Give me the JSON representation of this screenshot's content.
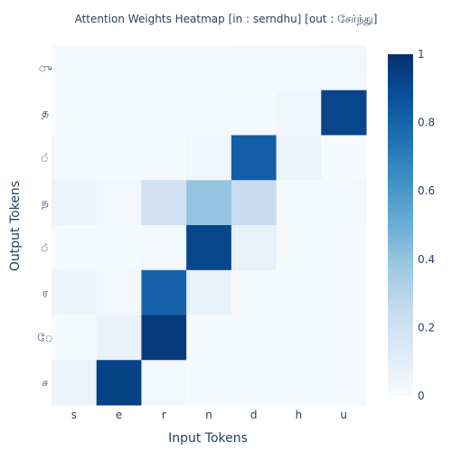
{
  "chart_data": {
    "type": "heatmap",
    "title": "Attention Weights Heatmap [in : serndhu] [out : சேர்ந்து]",
    "xlabel": "Input Tokens",
    "ylabel": "Output Tokens",
    "x_categories": [
      "s",
      "e",
      "r",
      "n",
      "d",
      "h",
      "u"
    ],
    "y_categories": [
      "ு",
      "த",
      "்",
      "ந",
      "்",
      "ர",
      "ே",
      "ச"
    ],
    "values": [
      [
        0.01,
        0.01,
        0.01,
        0.01,
        0.02,
        0.02,
        0.03
      ],
      [
        0.01,
        0.01,
        0.01,
        0.01,
        0.01,
        0.04,
        0.92
      ],
      [
        0.02,
        0.01,
        0.01,
        0.04,
        0.82,
        0.06,
        0.01
      ],
      [
        0.06,
        0.03,
        0.2,
        0.4,
        0.24,
        0.01,
        0.02
      ],
      [
        0.01,
        0.01,
        0.02,
        0.92,
        0.08,
        0.01,
        0.01
      ],
      [
        0.05,
        0.03,
        0.8,
        0.08,
        0.01,
        0.01,
        0.01
      ],
      [
        0.01,
        0.07,
        0.96,
        0.01,
        0.01,
        0.01,
        0.01
      ],
      [
        0.06,
        0.93,
        0.03,
        0.01,
        0.01,
        0.01,
        0.01
      ]
    ],
    "zlim": [
      0,
      1
    ],
    "colorscale": "Blues",
    "colorbar_ticks": [
      "0",
      "0.2",
      "0.4",
      "0.6",
      "0.8",
      "1"
    ],
    "colorbar_tick_values": [
      0,
      0.2,
      0.4,
      0.6,
      0.8,
      1
    ],
    "colors": {
      "low": "#f7fbff",
      "high": "#08306b",
      "text": "#2a3f5f"
    }
  }
}
